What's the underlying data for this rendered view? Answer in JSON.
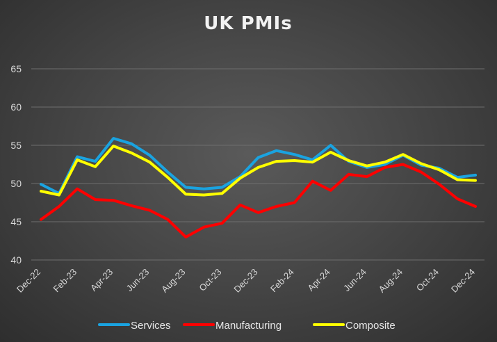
{
  "chart_data": {
    "type": "line",
    "title": "UK PMIs",
    "xlabel": "",
    "ylabel": "",
    "ylim": [
      40,
      65
    ],
    "yticks": [
      40,
      45,
      50,
      55,
      60,
      65
    ],
    "grid": true,
    "legend_position": "bottom",
    "x": [
      "Dec-22",
      "Jan-23",
      "Feb-23",
      "Mar-23",
      "Apr-23",
      "May-23",
      "Jun-23",
      "Jul-23",
      "Aug-23",
      "Sep-23",
      "Oct-23",
      "Nov-23",
      "Dec-23",
      "Jan-24",
      "Feb-24",
      "Mar-24",
      "Apr-24",
      "May-24",
      "Jun-24",
      "Jul-24",
      "Aug-24",
      "Sep-24",
      "Oct-24",
      "Nov-24",
      "Dec-24"
    ],
    "x_tick_labels": [
      "Dec-22",
      "Feb-23",
      "Apr-23",
      "Jun-23",
      "Aug-23",
      "Oct-23",
      "Dec-23",
      "Feb-24",
      "Apr-24",
      "Jun-24",
      "Aug-24",
      "Oct-24",
      "Dec-24"
    ],
    "series": [
      {
        "name": "Services",
        "color": "#1aa3e0",
        "values": [
          49.9,
          48.7,
          53.5,
          52.9,
          55.9,
          55.2,
          53.7,
          51.5,
          49.5,
          49.3,
          49.5,
          50.9,
          53.4,
          54.3,
          53.8,
          53.1,
          55.0,
          52.9,
          52.1,
          52.5,
          53.7,
          52.4,
          52.0,
          50.8,
          51.1
        ]
      },
      {
        "name": "Manufacturing",
        "color": "#ff0000",
        "values": [
          45.3,
          47.0,
          49.3,
          47.9,
          47.8,
          47.1,
          46.5,
          45.3,
          43.0,
          44.3,
          44.8,
          47.2,
          46.2,
          47.0,
          47.5,
          50.3,
          49.1,
          51.2,
          50.9,
          52.1,
          52.5,
          51.5,
          49.9,
          48.0,
          47.0
        ]
      },
      {
        "name": "Composite",
        "color": "#ffff00",
        "values": [
          49.0,
          48.5,
          53.1,
          52.2,
          54.9,
          54.0,
          52.8,
          50.8,
          48.6,
          48.5,
          48.7,
          50.7,
          52.1,
          52.9,
          53.0,
          52.8,
          54.1,
          53.0,
          52.3,
          52.8,
          53.8,
          52.6,
          51.8,
          50.5,
          50.4
        ]
      }
    ]
  }
}
